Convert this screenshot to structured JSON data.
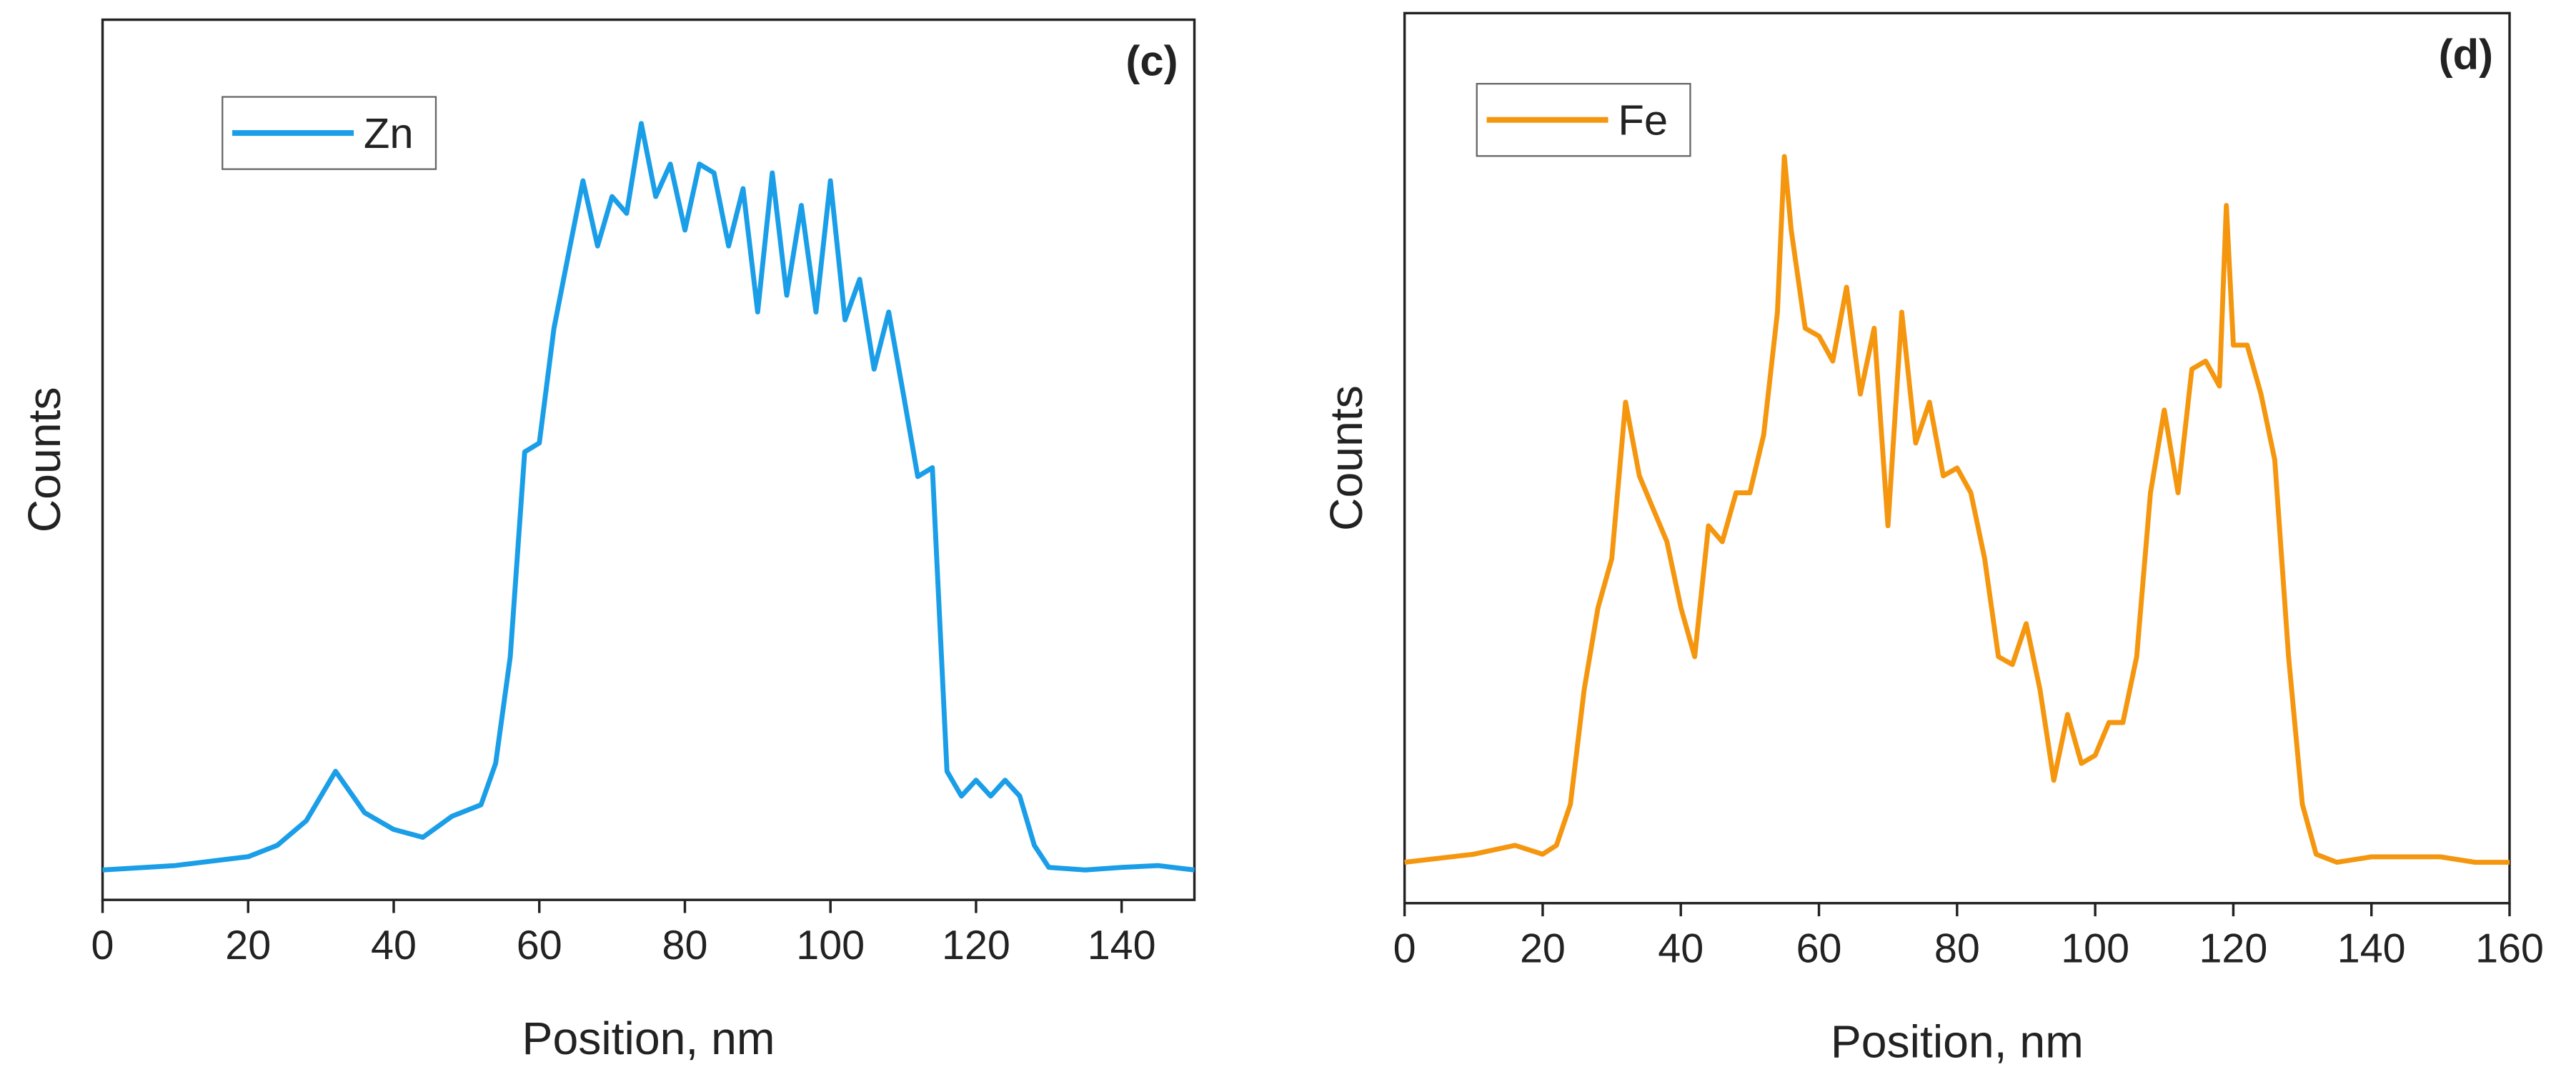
{
  "chart_data": [
    {
      "type": "line",
      "annotation": "(c)",
      "xlabel": "Position, nm",
      "ylabel": "Counts",
      "xlim": [
        0,
        150
      ],
      "xticks": [
        0,
        20,
        40,
        60,
        80,
        100,
        120,
        140
      ],
      "ylim": [
        0,
        100
      ],
      "legend": "upper left",
      "x": [
        0,
        10,
        20,
        24,
        28,
        32,
        36,
        40,
        44,
        48,
        52,
        54,
        56,
        58,
        60,
        62,
        64,
        66,
        68,
        70,
        72,
        74,
        76,
        78,
        80,
        82,
        84,
        86,
        88,
        90,
        92,
        94,
        96,
        98,
        100,
        102,
        104,
        106,
        108,
        110,
        112,
        114,
        116,
        118,
        120,
        122,
        124,
        126,
        128,
        130,
        135,
        140,
        145,
        150
      ],
      "series": [
        {
          "name": "Zn",
          "color": "#1a9ee8",
          "values": [
            3.4,
            3.9,
            4.9,
            6.2,
            9.0,
            14.6,
            9.9,
            8.0,
            7.1,
            9.5,
            10.8,
            15.5,
            27.6,
            50.9,
            51.9,
            64.9,
            73.3,
            81.7,
            74.3,
            79.9,
            78.0,
            88.2,
            79.9,
            83.6,
            76.1,
            83.6,
            82.6,
            74.3,
            80.8,
            66.8,
            82.6,
            68.7,
            78.9,
            66.8,
            81.7,
            65.9,
            70.5,
            60.3,
            66.8,
            57.5,
            48.1,
            49.1,
            14.6,
            11.8,
            13.6,
            11.8,
            13.6,
            11.8,
            6.2,
            3.7,
            3.4,
            3.7,
            3.9,
            3.4
          ]
        }
      ]
    },
    {
      "type": "line",
      "annotation": "(d)",
      "xlabel": "Position, nm",
      "ylabel": "Counts",
      "xlim": [
        0,
        160
      ],
      "xticks": [
        0,
        20,
        40,
        60,
        80,
        100,
        120,
        140,
        160
      ],
      "ylim": [
        0,
        100
      ],
      "legend": "upper left",
      "x": [
        0,
        10,
        16,
        20,
        22,
        24,
        26,
        28,
        30,
        32,
        34,
        36,
        38,
        40,
        42,
        44,
        46,
        48,
        50,
        52,
        54,
        55,
        56,
        58,
        60,
        62,
        64,
        66,
        68,
        70,
        72,
        74,
        76,
        78,
        80,
        82,
        84,
        86,
        88,
        90,
        92,
        94,
        96,
        98,
        100,
        102,
        104,
        106,
        108,
        110,
        112,
        114,
        116,
        118,
        119,
        120,
        122,
        124,
        126,
        128,
        130,
        132,
        135,
        140,
        145,
        150,
        155,
        160
      ],
      "series": [
        {
          "name": "Fe",
          "color": "#f5960f",
          "values": [
            4.6,
            5.5,
            6.5,
            5.5,
            6.5,
            11.1,
            24.0,
            33.2,
            38.7,
            56.3,
            48.0,
            44.3,
            40.6,
            33.2,
            27.7,
            42.4,
            40.6,
            46.1,
            46.1,
            52.6,
            66.4,
            83.9,
            75.6,
            64.6,
            63.7,
            60.9,
            69.2,
            57.2,
            64.6,
            42.4,
            66.4,
            51.7,
            56.3,
            48.0,
            48.9,
            46.1,
            38.7,
            27.7,
            26.8,
            31.4,
            24.0,
            13.8,
            21.2,
            15.7,
            16.6,
            20.3,
            20.3,
            27.7,
            46.1,
            55.4,
            46.1,
            60.0,
            60.9,
            58.1,
            78.4,
            62.7,
            62.7,
            57.2,
            49.8,
            27.7,
            11.1,
            5.5,
            4.6,
            5.2,
            5.2,
            5.2,
            4.6,
            4.6
          ]
        }
      ]
    }
  ]
}
